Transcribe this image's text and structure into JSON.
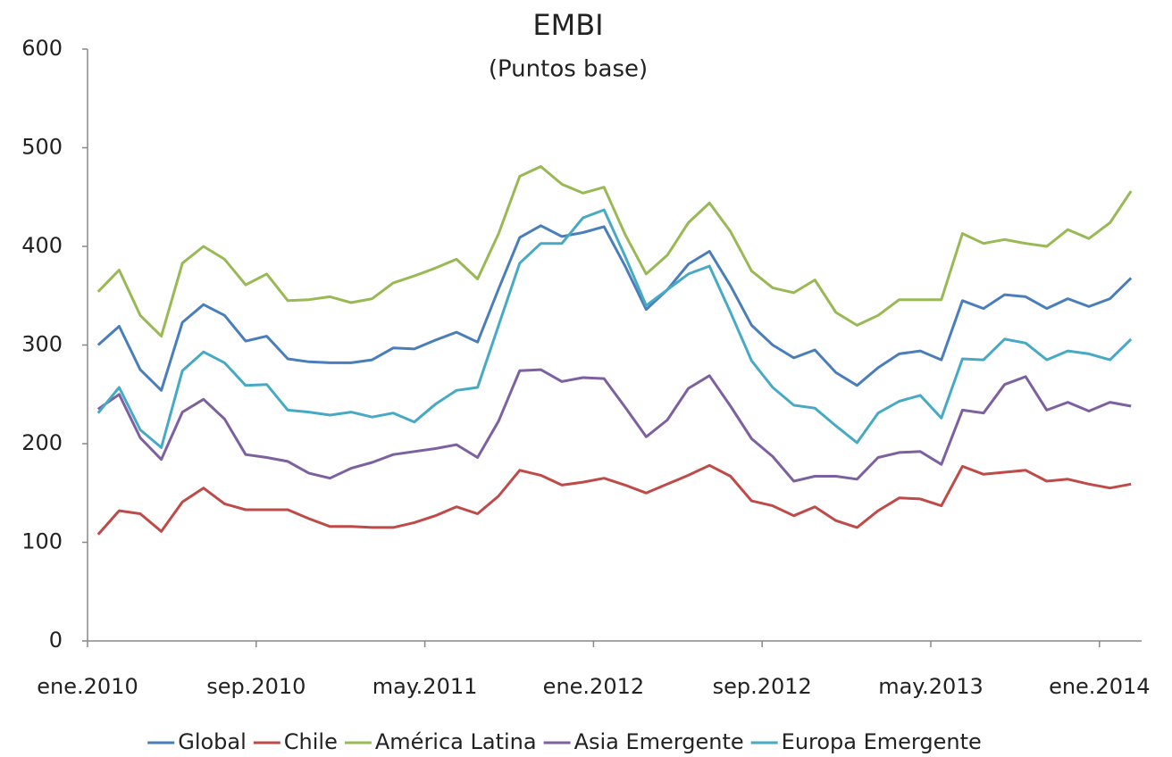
{
  "chart_data": {
    "type": "line",
    "title": "EMBI",
    "subtitle": "(Puntos base)",
    "categories": [
      "ene.2010",
      null,
      null,
      null,
      null,
      null,
      null,
      null,
      "sep.2010",
      null,
      null,
      null,
      null,
      null,
      null,
      null,
      "may.2011",
      null,
      null,
      null,
      null,
      null,
      null,
      null,
      "ene.2012",
      null,
      null,
      null,
      null,
      null,
      null,
      null,
      "sep.2012",
      null,
      null,
      null,
      null,
      null,
      null,
      null,
      "may.2013",
      null,
      null,
      null,
      null,
      null,
      null,
      null,
      "ene.2014",
      null
    ],
    "ylim": [
      0,
      600
    ],
    "yticks": [
      0,
      100,
      200,
      300,
      400,
      500,
      600
    ],
    "grid": false,
    "legend": "bottom",
    "series": [
      {
        "name": "Global",
        "color": "#4a7ebb",
        "values": [
          300,
          319,
          275,
          254,
          323,
          341,
          330,
          304,
          309,
          286,
          283,
          282,
          282,
          285,
          297,
          296,
          305,
          313,
          303,
          357,
          409,
          421,
          410,
          414,
          420,
          380,
          336,
          356,
          382,
          395,
          360,
          320,
          300,
          287,
          295,
          272,
          259,
          277,
          291,
          294,
          285,
          345,
          337,
          351,
          349,
          337,
          347,
          339,
          347,
          368
        ]
      },
      {
        "name": "Chile",
        "color": "#be4b48",
        "values": [
          108,
          132,
          129,
          111,
          141,
          155,
          139,
          133,
          133,
          133,
          124,
          116,
          116,
          115,
          115,
          120,
          127,
          136,
          129,
          147,
          173,
          168,
          158,
          161,
          165,
          158,
          150,
          159,
          168,
          178,
          167,
          142,
          137,
          127,
          136,
          122,
          115,
          132,
          145,
          144,
          137,
          177,
          169,
          171,
          173,
          162,
          164,
          159,
          155,
          159
        ]
      },
      {
        "name": "América Latina",
        "color": "#98b954",
        "values": [
          354,
          376,
          330,
          309,
          383,
          400,
          387,
          361,
          372,
          345,
          346,
          349,
          343,
          347,
          363,
          370,
          378,
          387,
          367,
          413,
          471,
          481,
          463,
          454,
          460,
          412,
          372,
          391,
          424,
          444,
          415,
          375,
          358,
          353,
          366,
          333,
          320,
          330,
          346,
          346,
          346,
          413,
          403,
          407,
          403,
          400,
          417,
          408,
          424,
          456
        ]
      },
      {
        "name": "Asia Emergente",
        "color": "#7d60a0",
        "values": [
          235,
          250,
          206,
          184,
          232,
          245,
          225,
          189,
          186,
          182,
          170,
          165,
          175,
          181,
          189,
          192,
          195,
          199,
          186,
          223,
          274,
          275,
          263,
          267,
          266,
          237,
          207,
          224,
          256,
          269,
          238,
          205,
          187,
          162,
          167,
          167,
          164,
          186,
          191,
          192,
          179,
          234,
          231,
          260,
          268,
          234,
          242,
          233,
          242,
          238
        ]
      },
      {
        "name": "Europa Emergente",
        "color": "#46aac5",
        "values": [
          231,
          257,
          214,
          196,
          274,
          293,
          282,
          259,
          260,
          234,
          232,
          229,
          232,
          227,
          231,
          222,
          240,
          254,
          257,
          320,
          383,
          403,
          403,
          429,
          437,
          390,
          340,
          356,
          372,
          380,
          333,
          284,
          257,
          239,
          236,
          218,
          201,
          231,
          243,
          249,
          226,
          286,
          285,
          306,
          302,
          285,
          294,
          291,
          285,
          306
        ]
      }
    ]
  }
}
